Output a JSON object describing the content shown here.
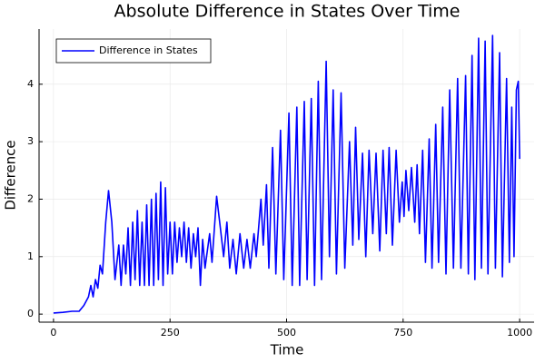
{
  "chart_data": {
    "type": "line",
    "title": "Absolute Difference in States Over Time",
    "x_label": "Time",
    "y_label": "Difference",
    "x": [
      0,
      20,
      40,
      55,
      65,
      75,
      80,
      85,
      90,
      95,
      100,
      105,
      112,
      118,
      125,
      132,
      140,
      145,
      150,
      155,
      160,
      165,
      170,
      175,
      180,
      185,
      190,
      195,
      200,
      205,
      210,
      215,
      220,
      225,
      230,
      235,
      240,
      245,
      250,
      255,
      260,
      265,
      270,
      275,
      280,
      285,
      290,
      295,
      300,
      305,
      310,
      315,
      320,
      325,
      335,
      340,
      350,
      358,
      365,
      372,
      378,
      385,
      392,
      400,
      408,
      415,
      422,
      430,
      435,
      445,
      450,
      457,
      462,
      470,
      477,
      487,
      494,
      505,
      512,
      522,
      528,
      538,
      544,
      553,
      560,
      568,
      575,
      585,
      592,
      600,
      607,
      617,
      625,
      635,
      642,
      648,
      655,
      663,
      670,
      677,
      685,
      692,
      700,
      707,
      714,
      720,
      727,
      735,
      742,
      748,
      752,
      756,
      762,
      768,
      775,
      780,
      785,
      792,
      798,
      806,
      812,
      820,
      826,
      835,
      842,
      850,
      858,
      867,
      874,
      884,
      890,
      898,
      904,
      912,
      918,
      926,
      932,
      942,
      948,
      957,
      963,
      972,
      978,
      983,
      988,
      993,
      997,
      1000
    ],
    "series": [
      {
        "name": "Difference in States",
        "color": "#0000ff",
        "values": [
          0.02,
          0.03,
          0.05,
          0.05,
          0.15,
          0.3,
          0.5,
          0.3,
          0.6,
          0.45,
          0.85,
          0.7,
          1.6,
          2.15,
          1.6,
          0.6,
          1.2,
          0.5,
          1.2,
          0.7,
          1.5,
          0.5,
          1.6,
          0.6,
          1.8,
          0.5,
          1.6,
          0.5,
          1.9,
          0.5,
          2.0,
          0.5,
          2.1,
          0.6,
          2.3,
          0.5,
          2.2,
          0.7,
          1.6,
          0.7,
          1.6,
          0.9,
          1.5,
          1.0,
          1.6,
          0.9,
          1.5,
          0.8,
          1.4,
          1.0,
          1.5,
          0.5,
          1.3,
          0.8,
          1.4,
          0.9,
          2.05,
          1.5,
          1.0,
          1.6,
          0.8,
          1.3,
          0.7,
          1.4,
          0.8,
          1.3,
          0.8,
          1.4,
          1.0,
          2.0,
          1.2,
          2.25,
          0.8,
          2.9,
          0.7,
          3.2,
          0.6,
          3.5,
          0.5,
          3.6,
          0.5,
          3.7,
          0.6,
          3.75,
          0.5,
          4.05,
          0.6,
          4.4,
          1.0,
          3.9,
          0.7,
          3.85,
          0.8,
          3.0,
          1.2,
          3.25,
          1.3,
          2.8,
          1.0,
          2.85,
          1.4,
          2.8,
          1.1,
          2.85,
          1.4,
          2.9,
          1.2,
          2.85,
          1.6,
          2.3,
          1.7,
          2.5,
          1.8,
          2.55,
          1.6,
          2.6,
          1.4,
          2.85,
          0.9,
          3.05,
          0.8,
          3.3,
          0.9,
          3.6,
          0.7,
          3.9,
          0.8,
          4.1,
          0.8,
          4.15,
          0.7,
          4.5,
          0.6,
          4.8,
          0.8,
          4.75,
          0.7,
          4.85,
          0.8,
          4.55,
          0.65,
          4.1,
          0.9,
          3.6,
          1.0,
          3.9,
          4.05,
          2.7
        ]
      }
    ],
    "xlim": [
      -31,
      1031
    ],
    "ylim": [
      -0.14,
      4.96
    ],
    "xticks": [
      0,
      250,
      500,
      750,
      1000
    ],
    "yticks": [
      0,
      1,
      2,
      3,
      4
    ],
    "grid": true,
    "legend": "top-left"
  }
}
